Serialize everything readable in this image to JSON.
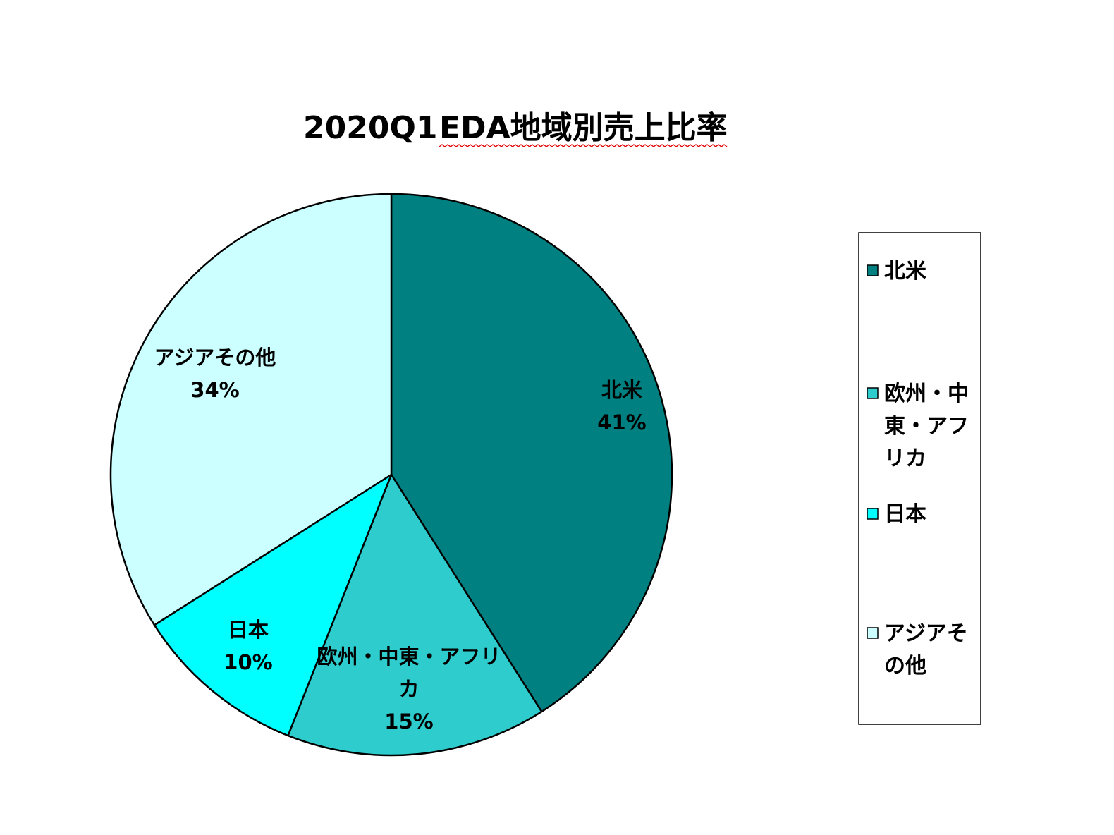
{
  "chart_data": {
    "type": "pie",
    "title_parts": [
      "2020Q1",
      "EDA地域別売上比率"
    ],
    "slices": [
      {
        "label": "北米",
        "value": 41,
        "value_label": "41%",
        "color": "#008080",
        "slice_label_lines": [
          "北米"
        ],
        "legend_lines": [
          "北米"
        ]
      },
      {
        "label": "欧州・中東・アフリカ",
        "value": 15,
        "value_label": "15%",
        "color": "#2ecccc",
        "slice_label_lines": [
          "欧州・中東・アフリ",
          "カ"
        ],
        "legend_lines": [
          "欧州・中",
          "東・アフ",
          "リカ"
        ]
      },
      {
        "label": "日本",
        "value": 10,
        "value_label": "10%",
        "color": "#00ffff",
        "slice_label_lines": [
          "日本"
        ],
        "legend_lines": [
          "日本"
        ]
      },
      {
        "label": "アジアその他",
        "value": 34,
        "value_label": "34%",
        "color": "#ccffff",
        "slice_label_lines": [
          "アジアその他"
        ],
        "legend_lines": [
          "アジアそ",
          "の他"
        ]
      }
    ],
    "start_angle": "12 o'clock",
    "direction": "clockwise",
    "legend_position": "right"
  }
}
